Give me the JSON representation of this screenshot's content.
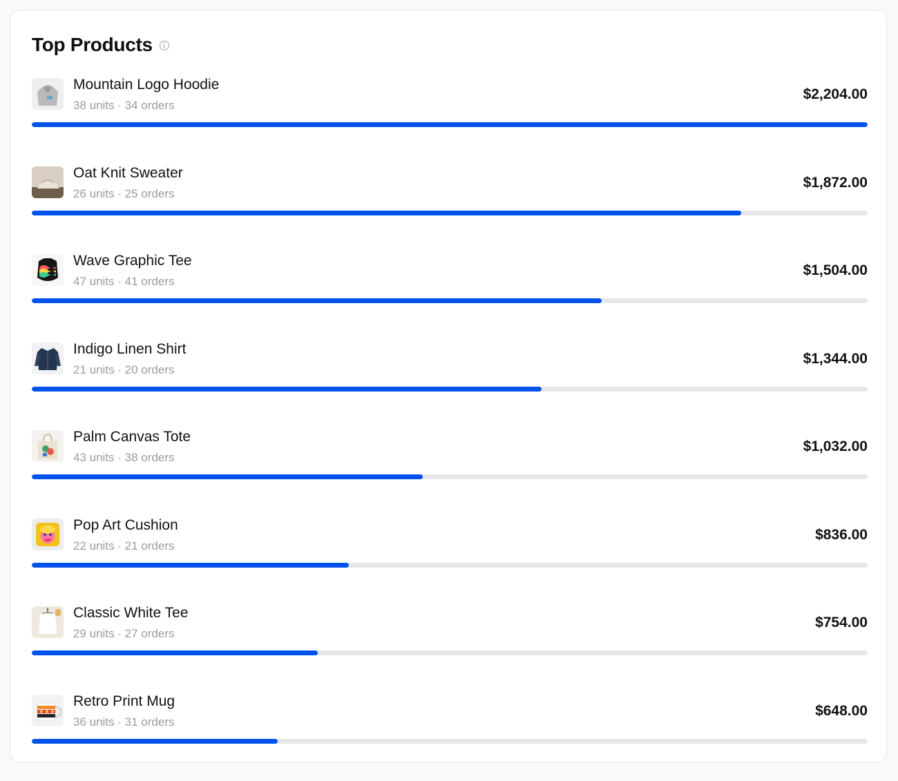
{
  "header": {
    "title": "Top Products",
    "info_icon": "info-icon"
  },
  "colors": {
    "bar": "#0052eb",
    "track": "#e6e6ea"
  },
  "products": [
    {
      "name": "Mountain Logo Hoodie",
      "units": "38 units",
      "orders": "34 orders",
      "revenue": "$2,204.00",
      "share": 1.0,
      "icon": "hoodie-thumbnail-icon"
    },
    {
      "name": "Oat Knit Sweater",
      "units": "26 units",
      "orders": "25 orders",
      "revenue": "$1,872.00",
      "share": 0.849,
      "icon": "sweater-thumbnail-icon"
    },
    {
      "name": "Wave Graphic Tee",
      "units": "47 units",
      "orders": "41 orders",
      "revenue": "$1,504.00",
      "share": 0.682,
      "icon": "tee-thumbnail-icon"
    },
    {
      "name": "Indigo Linen Shirt",
      "units": "21 units",
      "orders": "20 orders",
      "revenue": "$1,344.00",
      "share": 0.61,
      "icon": "shirt-thumbnail-icon"
    },
    {
      "name": "Palm Canvas Tote",
      "units": "43 units",
      "orders": "38 orders",
      "revenue": "$1,032.00",
      "share": 0.468,
      "icon": "tote-thumbnail-icon"
    },
    {
      "name": "Pop Art Cushion",
      "units": "22 units",
      "orders": "21 orders",
      "revenue": "$836.00",
      "share": 0.379,
      "icon": "cushion-thumbnail-icon"
    },
    {
      "name": "Classic White Tee",
      "units": "29 units",
      "orders": "27 orders",
      "revenue": "$754.00",
      "share": 0.342,
      "icon": "white-tee-thumbnail-icon"
    },
    {
      "name": "Retro Print Mug",
      "units": "36 units",
      "orders": "31 orders",
      "revenue": "$648.00",
      "share": 0.294,
      "icon": "mug-thumbnail-icon"
    }
  ]
}
